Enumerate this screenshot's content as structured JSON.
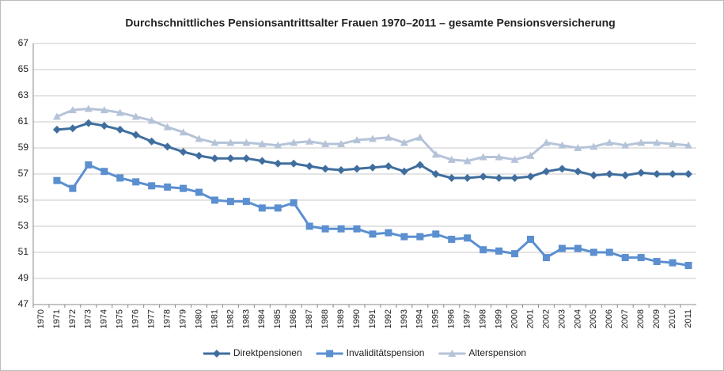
{
  "chart_data": {
    "type": "line",
    "title": "Durchschnittliches Pensionsantrittsalter Frauen 1970–2011 – gesamte Pensionsversicherung",
    "categories": [
      "1970",
      "1971",
      "1972",
      "1973",
      "1974",
      "1975",
      "1976",
      "1977",
      "1978",
      "1979",
      "1980",
      "1981",
      "1982",
      "1983",
      "1984",
      "1985",
      "1986",
      "1987",
      "1988",
      "1989",
      "1990",
      "1991",
      "1992",
      "1993",
      "1994",
      "1995",
      "1996",
      "1997",
      "1998",
      "1999",
      "2000",
      "2001",
      "2002",
      "2003",
      "2004",
      "2005",
      "2006",
      "2007",
      "2008",
      "2009",
      "2010",
      "2011"
    ],
    "series": [
      {
        "name": "Direktpensionen",
        "color": "#3f6e9e",
        "marker": "diamond",
        "values": [
          null,
          60.4,
          60.5,
          60.9,
          60.7,
          60.4,
          60.0,
          59.5,
          59.1,
          58.7,
          58.4,
          58.2,
          58.2,
          58.2,
          58.0,
          57.8,
          57.8,
          57.6,
          57.4,
          57.3,
          57.4,
          57.5,
          57.6,
          57.2,
          57.7,
          57.0,
          56.7,
          56.7,
          56.8,
          56.7,
          56.7,
          56.8,
          57.2,
          57.4,
          57.2,
          56.9,
          57.0,
          56.9,
          57.1,
          57.0,
          57.0,
          57.0
        ]
      },
      {
        "name": "Invaliditätspension",
        "color": "#5b8fd0",
        "marker": "square",
        "values": [
          null,
          56.5,
          55.9,
          57.7,
          57.2,
          56.7,
          56.4,
          56.1,
          56.0,
          55.9,
          55.6,
          55.0,
          54.9,
          54.9,
          54.4,
          54.4,
          54.8,
          53.0,
          52.8,
          52.8,
          52.8,
          52.4,
          52.5,
          52.2,
          52.2,
          52.4,
          52.0,
          52.1,
          51.2,
          51.1,
          50.9,
          52.0,
          50.6,
          51.3,
          51.3,
          51.0,
          51.0,
          50.6,
          50.6,
          50.3,
          50.2,
          50.0
        ]
      },
      {
        "name": "Alterspension",
        "color": "#b5c3d9",
        "marker": "triangle",
        "values": [
          null,
          61.4,
          61.9,
          62.0,
          61.9,
          61.7,
          61.4,
          61.1,
          60.6,
          60.2,
          59.7,
          59.4,
          59.4,
          59.4,
          59.3,
          59.2,
          59.4,
          59.5,
          59.3,
          59.3,
          59.6,
          59.7,
          59.8,
          59.4,
          59.8,
          58.5,
          58.1,
          58.0,
          58.3,
          58.3,
          58.1,
          58.4,
          59.4,
          59.2,
          59.0,
          59.1,
          59.4,
          59.2,
          59.4,
          59.4,
          59.3,
          59.2
        ]
      }
    ],
    "ylim": [
      47,
      67
    ],
    "yticks": [
      47,
      49,
      51,
      53,
      55,
      57,
      59,
      61,
      63,
      65,
      67
    ],
    "grid": true,
    "legend": "bottom"
  }
}
